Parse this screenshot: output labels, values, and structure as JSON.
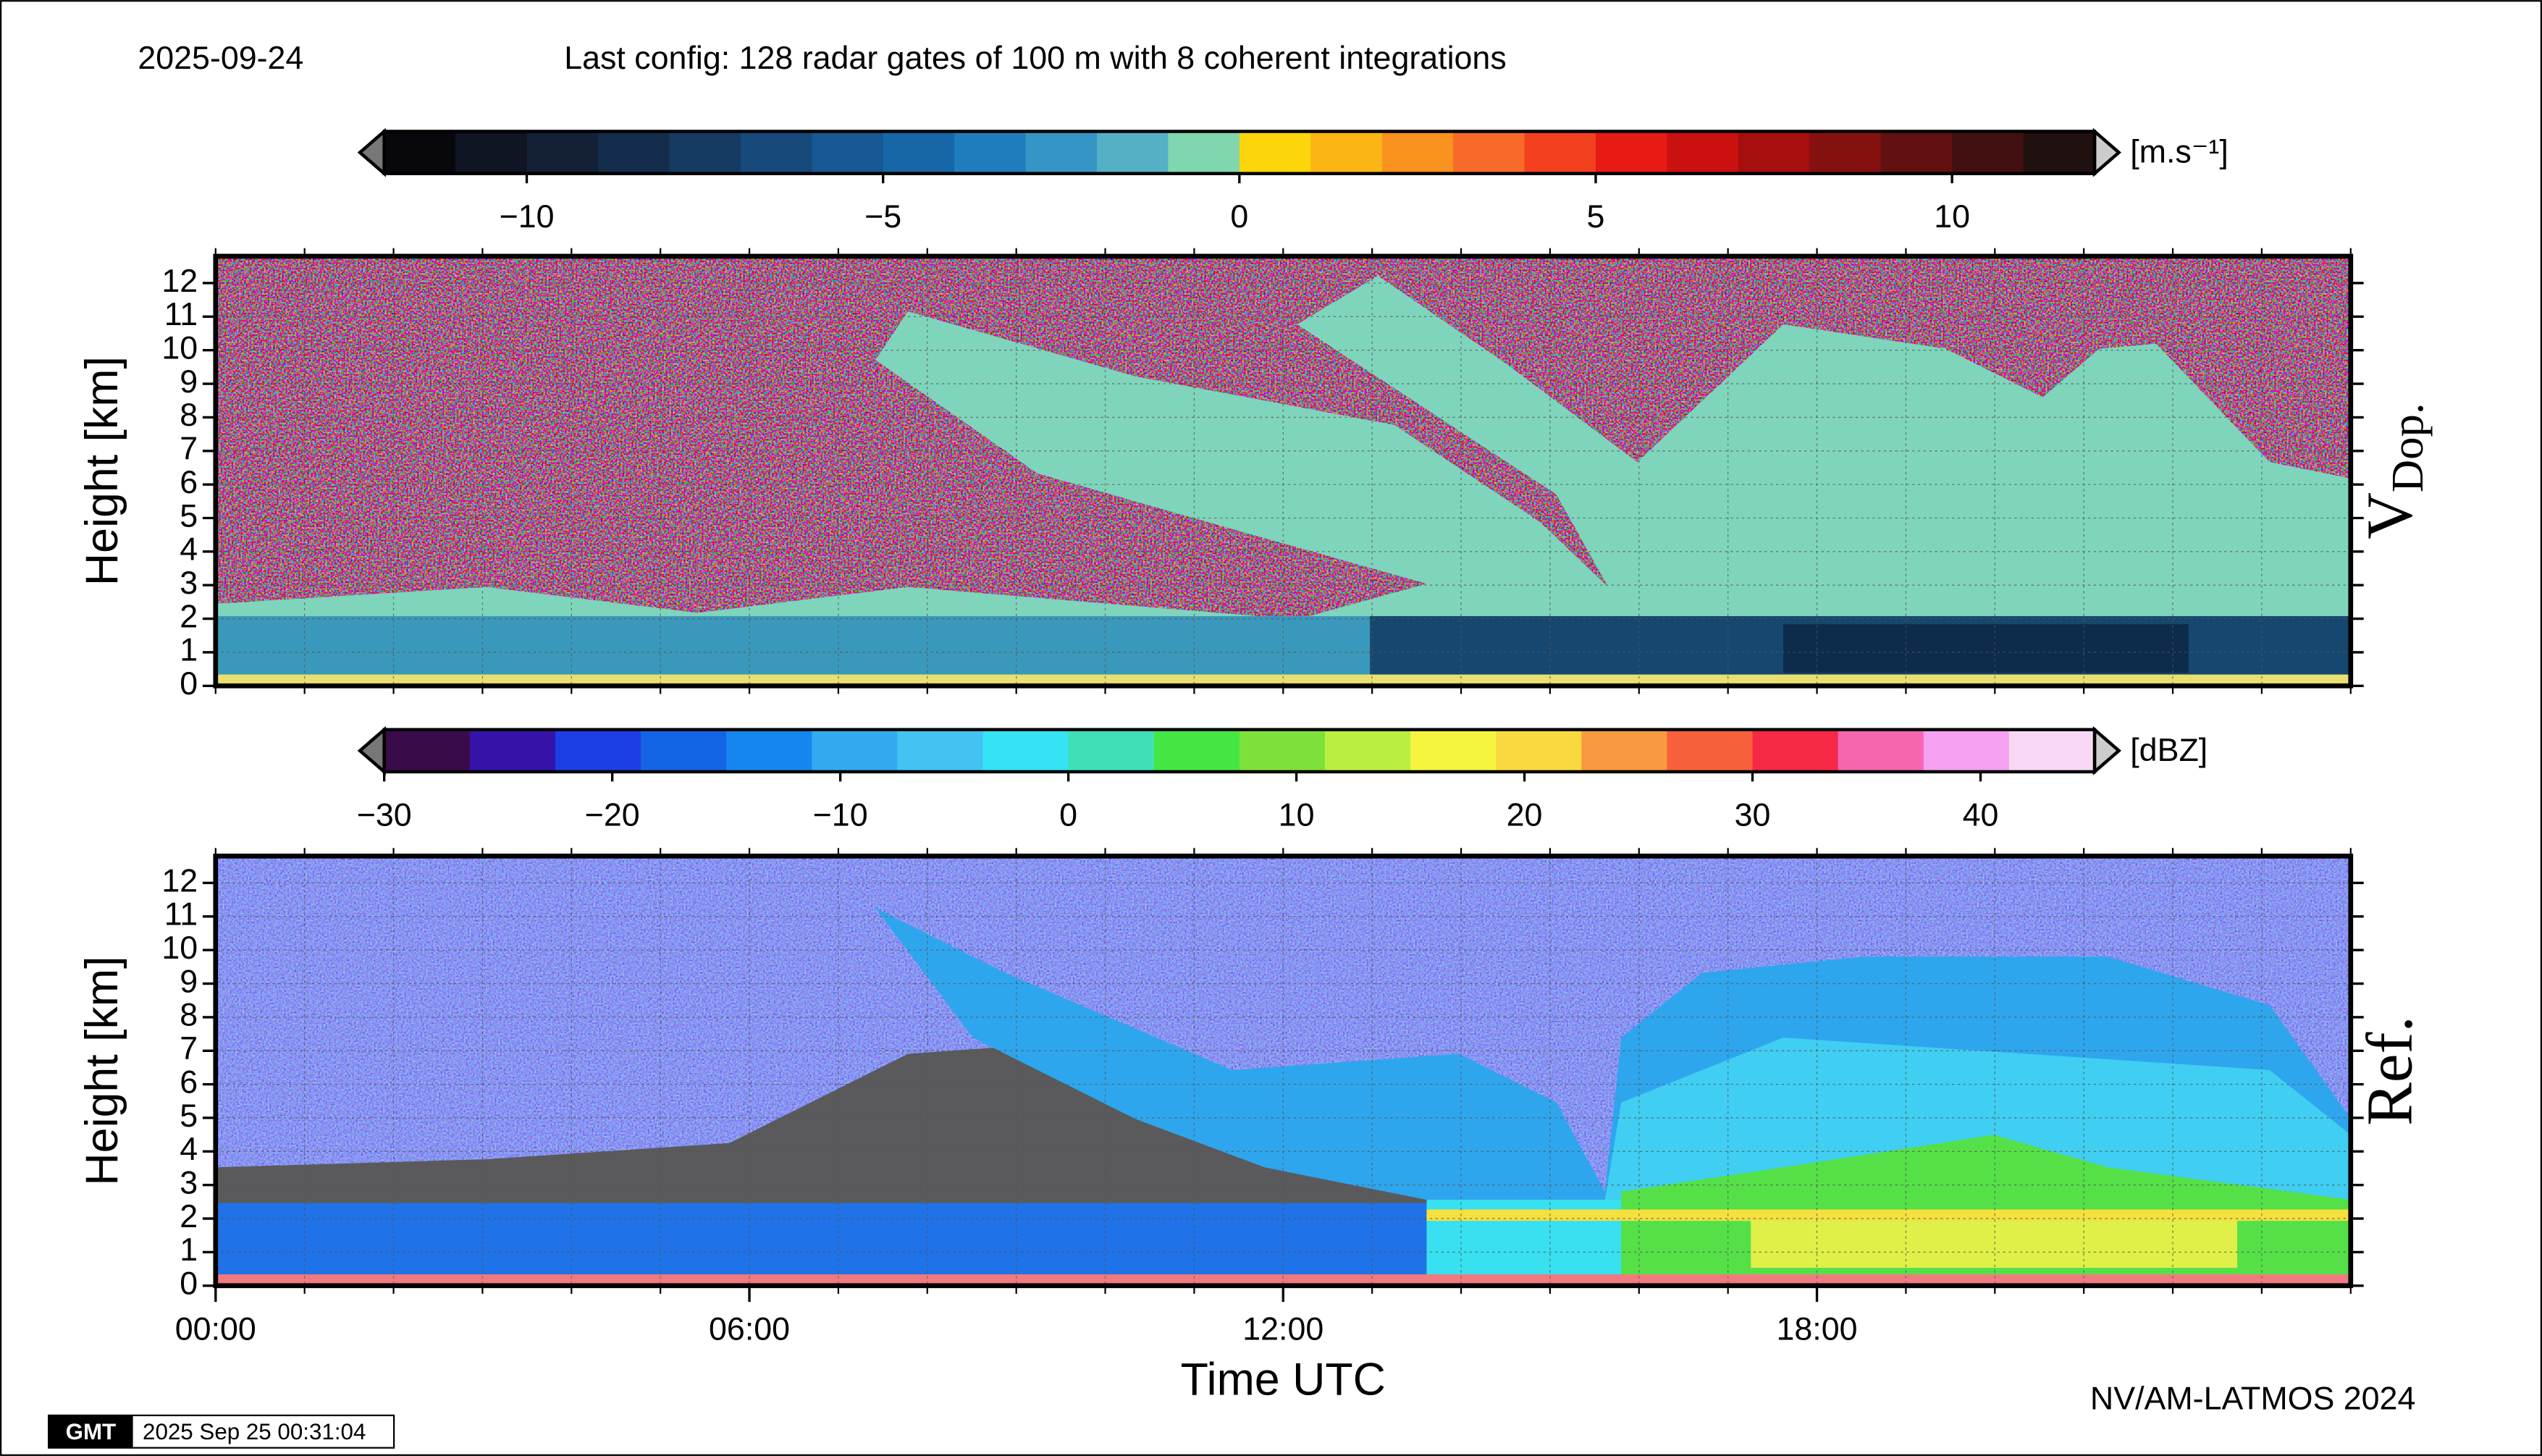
{
  "header": {
    "date": "2025-09-24",
    "config": "Last config: 128 radar gates of 100 m with 8 coherent integrations"
  },
  "footer": {
    "credit": "NV/AM-LATMOS 2024",
    "logo": "GMT",
    "timestamp": "2025 Sep 25 00:31:04"
  },
  "chart_data": [
    {
      "type": "heatmap",
      "panel_label": [
        "V",
        "Dop."
      ],
      "ylabel": "Height [km]",
      "colorbar_unit": "[m.s⁻¹]",
      "clim": [
        -12,
        12
      ],
      "colorbar_ticks": [
        {
          "value": -10,
          "label": "−10"
        },
        {
          "value": -5,
          "label": "−5"
        },
        0,
        5,
        10
      ],
      "colors": [
        "#08080c",
        "#0f1522",
        "#132036",
        "#142d4c",
        "#163b63",
        "#17497b",
        "#175892",
        "#1766a8",
        "#1f7dbd",
        "#3596c6",
        "#55b0c6",
        "#80d6ae",
        "#fcd50a",
        "#fbb615",
        "#f9921f",
        "#f76a29",
        "#f3401f",
        "#e71b14",
        "#cb1010",
        "#a70e0e",
        "#851010",
        "#621010",
        "#421010",
        "#211010"
      ],
      "xlim": [
        0,
        24
      ],
      "xminorticks": [
        0,
        1,
        2,
        3,
        4,
        5,
        6,
        7,
        8,
        9,
        10,
        11,
        12,
        13,
        14,
        15,
        16,
        17,
        18,
        19,
        20,
        21,
        22,
        23,
        24
      ],
      "ylim": [
        0,
        12.8
      ],
      "yticks": [
        0,
        1,
        2,
        3,
        4,
        5,
        6,
        7,
        8,
        9,
        10,
        11,
        12
      ],
      "grid": true
    },
    {
      "type": "heatmap",
      "panel_label": [
        "Ref."
      ],
      "ylabel": "Height [km]",
      "xlabel": "Time UTC",
      "colorbar_unit": "[dBZ]",
      "clim": [
        -30,
        45
      ],
      "colorbar_ticks": [
        {
          "value": -30,
          "label": "−30"
        },
        {
          "value": -20,
          "label": "−20"
        },
        {
          "value": -10,
          "label": "−10"
        },
        0,
        10,
        20,
        30,
        40
      ],
      "colors": [
        "#3a0b4a",
        "#3513a8",
        "#1c3ee6",
        "#1464e6",
        "#1586ee",
        "#33aaf0",
        "#43c3f2",
        "#35e3f5",
        "#3fe0b8",
        "#44e644",
        "#7ee03a",
        "#b8ef40",
        "#f5f540",
        "#fad840",
        "#f99a40",
        "#f7603a",
        "#f52845",
        "#f565b0",
        "#f5a0f0",
        "#f8d8f5"
      ],
      "xlim": [
        0,
        24
      ],
      "xticks": [
        {
          "value": 0,
          "label": "00:00"
        },
        {
          "value": 6,
          "label": "06:00"
        },
        {
          "value": 12,
          "label": "12:00"
        },
        {
          "value": 18,
          "label": "18:00"
        }
      ],
      "xminorticks": [
        0,
        1,
        2,
        3,
        4,
        5,
        6,
        7,
        8,
        9,
        10,
        11,
        12,
        13,
        14,
        15,
        16,
        17,
        18,
        19,
        20,
        21,
        22,
        23,
        24
      ],
      "ylim": [
        0,
        12.8
      ],
      "yticks": [
        0,
        1,
        2,
        3,
        4,
        5,
        6,
        7,
        8,
        9,
        10,
        11,
        12
      ],
      "grid": true
    }
  ]
}
